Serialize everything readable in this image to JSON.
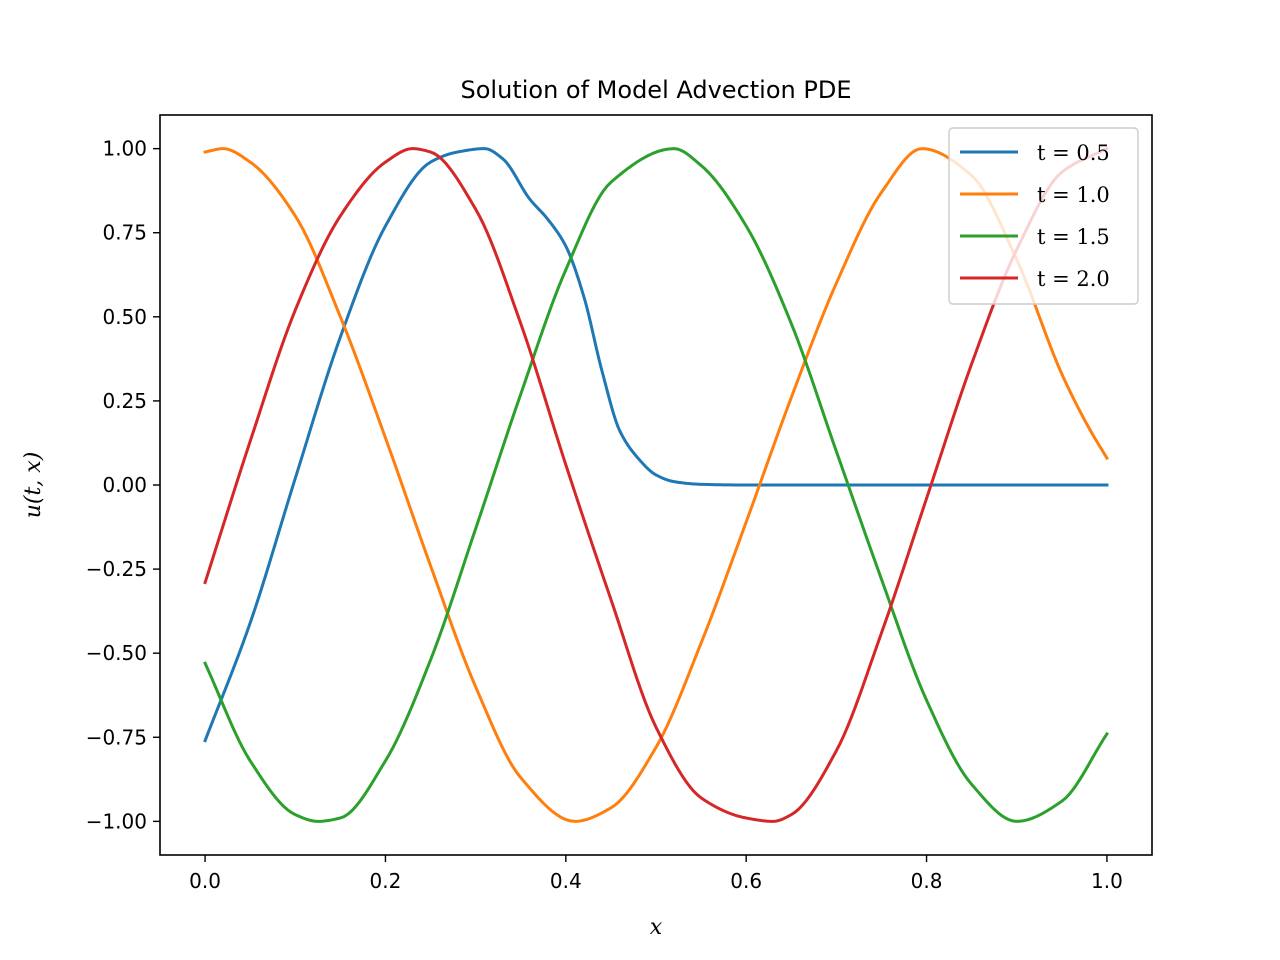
{
  "chart_data": {
    "type": "line",
    "title": "Solution of Model Advection PDE",
    "xlabel": "x",
    "ylabel": "u(t, x)",
    "xlim": [
      -0.05,
      1.05
    ],
    "ylim": [
      -1.1,
      1.1
    ],
    "xticks": [
      0.0,
      0.2,
      0.4,
      0.6,
      0.8,
      1.0
    ],
    "xtick_labels": [
      "0.0",
      "0.2",
      "0.4",
      "0.6",
      "0.8",
      "1.0"
    ],
    "yticks": [
      -1.0,
      -0.75,
      -0.5,
      -0.25,
      0.0,
      0.25,
      0.5,
      0.75,
      1.0
    ],
    "ytick_labels": [
      "−1.00",
      "−0.75",
      "−0.50",
      "−0.25",
      "0.00",
      "0.25",
      "0.50",
      "0.75",
      "1.00"
    ],
    "grid": false,
    "legend_position": "top-right",
    "series": [
      {
        "name": "t = 0.5",
        "color": "#1f77b4",
        "x": [
          0.0,
          0.05,
          0.1,
          0.15,
          0.2,
          0.25,
          0.28,
          0.31,
          0.33,
          0.36,
          0.38,
          0.4,
          0.42,
          0.44,
          0.46,
          0.48,
          0.5,
          0.52,
          0.55,
          0.6,
          0.7,
          0.8,
          0.9,
          1.0
        ],
        "values": [
          -0.76,
          -0.41,
          0.02,
          0.44,
          0.77,
          0.96,
          0.99,
          1.0,
          0.97,
          0.85,
          0.79,
          0.71,
          0.56,
          0.34,
          0.16,
          0.08,
          0.03,
          0.01,
          0.002,
          0.0,
          0.0,
          0.0,
          0.0,
          0.0
        ]
      },
      {
        "name": "t = 1.0",
        "color": "#ff7f0e",
        "x": [
          0.0,
          0.02,
          0.05,
          0.1,
          0.15,
          0.2,
          0.25,
          0.3,
          0.35,
          0.41,
          0.45,
          0.5,
          0.55,
          0.6,
          0.65,
          0.7,
          0.75,
          0.795,
          0.85,
          0.9,
          0.95,
          0.98,
          1.0
        ],
        "values": [
          0.99,
          1.0,
          0.96,
          0.8,
          0.5,
          0.14,
          -0.24,
          -0.6,
          -0.87,
          -1.0,
          -0.96,
          -0.78,
          -0.47,
          -0.11,
          0.26,
          0.6,
          0.87,
          1.0,
          0.92,
          0.67,
          0.33,
          0.17,
          0.08
        ]
      },
      {
        "name": "t = 1.5",
        "color": "#2ca02c",
        "x": [
          0.0,
          0.05,
          0.1,
          0.125,
          0.15,
          0.2,
          0.25,
          0.3,
          0.35,
          0.4,
          0.45,
          0.52,
          0.55,
          0.6,
          0.65,
          0.7,
          0.75,
          0.8,
          0.85,
          0.9,
          0.95,
          1.0
        ],
        "values": [
          -0.53,
          -0.82,
          -0.98,
          -1.0,
          -0.99,
          -0.82,
          -0.52,
          -0.13,
          0.27,
          0.64,
          0.9,
          1.0,
          0.95,
          0.77,
          0.48,
          0.1,
          -0.28,
          -0.64,
          -0.89,
          -1.0,
          -0.94,
          -0.74
        ]
      },
      {
        "name": "t = 2.0",
        "color": "#d62728",
        "x": [
          0.0,
          0.05,
          0.1,
          0.15,
          0.2,
          0.23,
          0.25,
          0.3,
          0.35,
          0.4,
          0.45,
          0.5,
          0.55,
          0.6,
          0.63,
          0.65,
          0.7,
          0.75,
          0.8,
          0.85,
          0.9,
          0.95,
          1.0
        ],
        "values": [
          -0.29,
          0.13,
          0.52,
          0.8,
          0.96,
          1.0,
          0.99,
          0.82,
          0.48,
          0.06,
          -0.34,
          -0.72,
          -0.93,
          -0.99,
          -1.0,
          -0.98,
          -0.79,
          -0.44,
          -0.04,
          0.36,
          0.7,
          0.93,
          1.0
        ]
      }
    ]
  }
}
